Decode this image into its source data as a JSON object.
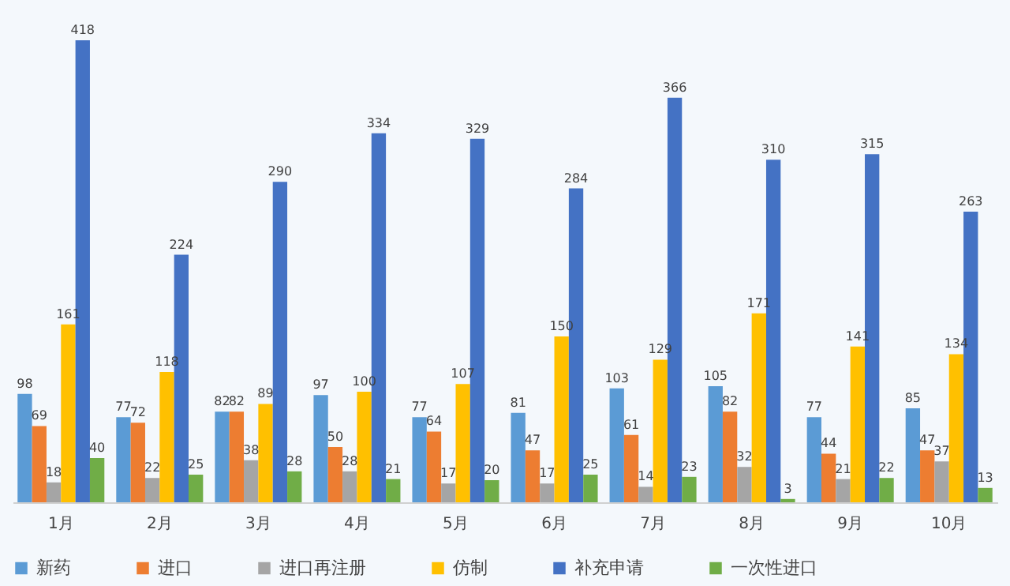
{
  "chart_data": {
    "type": "bar",
    "categories": [
      "1月",
      "2月",
      "3月",
      "4月",
      "5月",
      "6月",
      "7月",
      "8月",
      "9月",
      "10月"
    ],
    "series": [
      {
        "name": "新药",
        "color": "#5b9bd5",
        "values": [
          98,
          77,
          82,
          97,
          77,
          81,
          103,
          105,
          77,
          85
        ]
      },
      {
        "name": "进口",
        "color": "#ed7d31",
        "values": [
          69,
          72,
          82,
          50,
          64,
          47,
          61,
          82,
          44,
          47
        ]
      },
      {
        "name": "进口再注册",
        "color": "#a5a5a5",
        "values": [
          18,
          22,
          38,
          28,
          17,
          17,
          14,
          32,
          21,
          37
        ]
      },
      {
        "name": "仿制",
        "color": "#ffc000",
        "values": [
          161,
          118,
          89,
          100,
          107,
          150,
          129,
          171,
          141,
          134
        ]
      },
      {
        "name": "补充申请",
        "color": "#4472c4",
        "values": [
          418,
          224,
          290,
          334,
          329,
          284,
          366,
          310,
          315,
          263
        ]
      },
      {
        "name": "一次性进口",
        "color": "#70ad47",
        "values": [
          40,
          25,
          28,
          21,
          20,
          25,
          23,
          3,
          22,
          13
        ]
      }
    ],
    "data_labels": true,
    "grid": false,
    "legend": "bottom",
    "tick_labels": "x"
  }
}
